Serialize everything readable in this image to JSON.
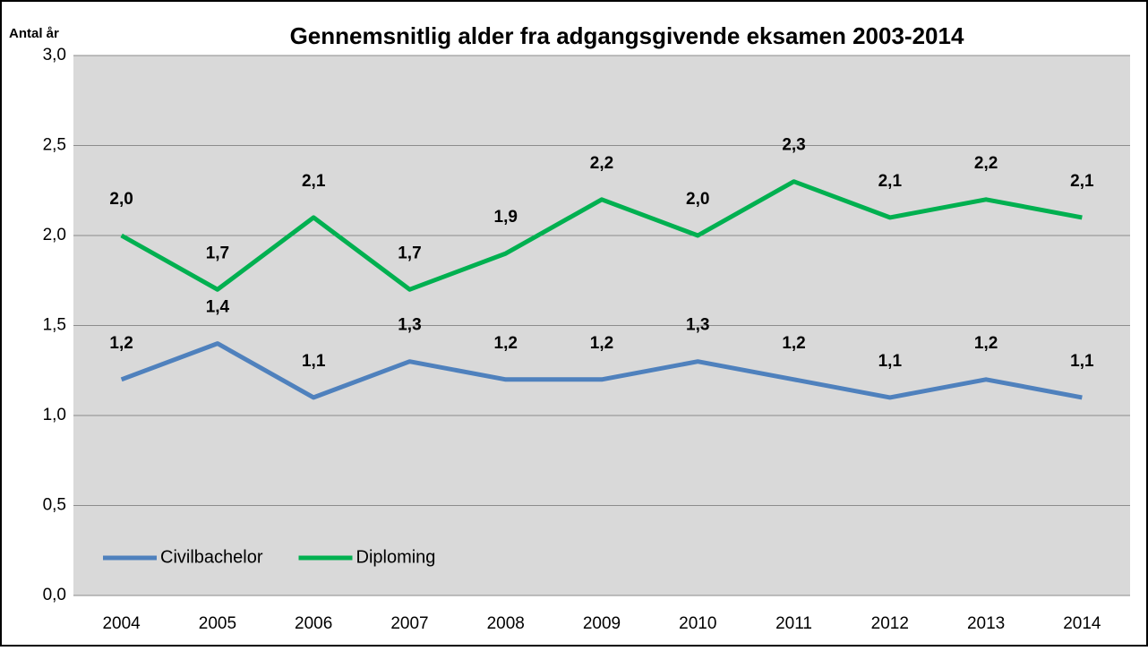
{
  "chart_data": {
    "type": "line",
    "title": "Gennemsnitlig alder fra adgangsgivende eksamen 2003-2014",
    "y_label": "Antal år",
    "categories": [
      "2004",
      "2005",
      "2006",
      "2007",
      "2008",
      "2009",
      "2010",
      "2011",
      "2012",
      "2013",
      "2014"
    ],
    "series": [
      {
        "name": "Civilbachelor",
        "color": "#4f81bd",
        "values": [
          1.2,
          1.4,
          1.1,
          1.3,
          1.2,
          1.2,
          1.3,
          1.2,
          1.1,
          1.2,
          1.1
        ],
        "value_labels": [
          "1,2",
          "1,4",
          "1,1",
          "1,3",
          "1,2",
          "1,2",
          "1,3",
          "1,2",
          "1,1",
          "1,2",
          "1,1"
        ]
      },
      {
        "name": "Diploming",
        "color": "#00b050",
        "values": [
          2.0,
          1.7,
          2.1,
          1.7,
          1.9,
          2.2,
          2.0,
          2.3,
          2.1,
          2.2,
          2.1
        ],
        "value_labels": [
          "2,0",
          "1,7",
          "2,1",
          "1,7",
          "1,9",
          "2,2",
          "2,0",
          "2,3",
          "2,1",
          "2,2",
          "2,1"
        ]
      }
    ],
    "ylim": [
      0,
      3
    ],
    "yticks": [
      {
        "value": 0,
        "label": "0,0"
      },
      {
        "value": 0.5,
        "label": "0,5"
      },
      {
        "value": 1,
        "label": "1,0"
      },
      {
        "value": 1.5,
        "label": "1,5"
      },
      {
        "value": 2,
        "label": "2,0"
      },
      {
        "value": 2.5,
        "label": "2,5"
      },
      {
        "value": 3,
        "label": "3,0"
      }
    ],
    "grid": true,
    "legend": "lower left"
  }
}
